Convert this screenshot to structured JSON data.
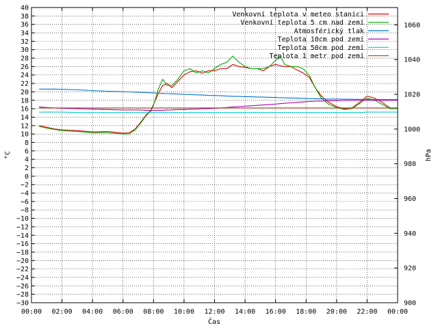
{
  "chart_data": {
    "type": "line",
    "title": "",
    "xlabel": "Čas",
    "ylabel": "°C",
    "y2label": "hPa",
    "xlim": [
      0,
      24
    ],
    "ylim": [
      -30,
      40
    ],
    "y2lim": [
      900,
      1070
    ],
    "grid": true,
    "legend_position": "top-right",
    "x_tick_labels": [
      "00:00",
      "02:00",
      "04:00",
      "06:00",
      "08:00",
      "10:00",
      "12:00",
      "14:00",
      "16:00",
      "18:00",
      "20:00",
      "22:00",
      "00:00"
    ],
    "y_tick_labels": [
      "40",
      "38",
      "36",
      "34",
      "32",
      "30",
      "28",
      "26",
      "24",
      "22",
      "20",
      "18",
      "16",
      "14",
      "12",
      "10",
      "8",
      "6",
      "4",
      "2",
      "0",
      "−2",
      "−4",
      "−6",
      "−8",
      "−10",
      "−12",
      "−14",
      "−16",
      "−18",
      "−20",
      "−22",
      "−24",
      "−26",
      "−28",
      "−30"
    ],
    "y2_tick_labels": [
      "1060",
      "1040",
      "1020",
      "1000",
      "980",
      "960",
      "940",
      "920",
      "900"
    ],
    "x_hours": [
      0.5,
      1,
      1.5,
      2,
      3,
      4,
      5,
      6,
      6.4,
      6.8,
      7.2,
      7.5,
      7.8,
      8,
      8.3,
      8.6,
      8.9,
      9.2,
      9.6,
      10,
      10.4,
      10.8,
      11.2,
      11.6,
      12,
      12.4,
      12.8,
      13.2,
      13.6,
      14,
      14.4,
      14.8,
      15.2,
      15.6,
      16,
      16.3,
      16.6,
      17,
      17.4,
      17.8,
      18.2,
      18.6,
      19,
      19.5,
      20,
      20.5,
      21,
      21.5,
      22,
      22.5,
      23,
      23.5,
      24
    ],
    "series": [
      {
        "name": "Venkovní teplota v meteo stanici",
        "color": "#dd0000",
        "axis": "left",
        "values": [
          12,
          11.6,
          11.2,
          11,
          10.8,
          10.5,
          10.6,
          10.2,
          10.3,
          11.2,
          13,
          14.5,
          15.5,
          17,
          19.5,
          21.5,
          22,
          21,
          22.5,
          24,
          24.8,
          25,
          24.4,
          25,
          25,
          25.5,
          25.5,
          26.5,
          26,
          25.8,
          25.5,
          25.5,
          25,
          26,
          26.5,
          26.2,
          26,
          26,
          25.2,
          24.5,
          23.5,
          21,
          19,
          17.5,
          16.5,
          16,
          16.2,
          17.5,
          19,
          18.5,
          17.5,
          16.2,
          16
        ]
      },
      {
        "name": "Venkovní teplota 5 cm nad zemí",
        "color": "#00aa00",
        "axis": "left",
        "values": [
          11.8,
          11.4,
          11.1,
          10.8,
          10.6,
          10.3,
          10.3,
          10,
          10,
          11,
          12.8,
          14.3,
          15.3,
          16.8,
          20.5,
          23,
          21.5,
          21.5,
          23,
          25,
          25.5,
          24.5,
          25,
          24.5,
          25.5,
          26.5,
          27,
          28.5,
          27,
          26,
          25.5,
          25.5,
          25.5,
          26,
          27.5,
          28.5,
          26.5,
          26,
          26,
          25.5,
          24,
          21,
          18.5,
          17,
          16.3,
          15.8,
          16,
          17.2,
          18.5,
          18,
          17,
          16,
          16
        ]
      },
      {
        "name": "Atmosférický tlak",
        "color": "#0070d0",
        "axis": "right",
        "values": [
          1023,
          1023,
          1023,
          1022.9,
          1022.6,
          1022.2,
          1021.8,
          1021.5,
          1021.4,
          1021.3,
          1021.1,
          1021,
          1020.9,
          1020.8,
          1020.6,
          1020.5,
          1020.4,
          1020.3,
          1020.2,
          1020,
          1019.9,
          1019.7,
          1019.6,
          1019.4,
          1019.3,
          1019.2,
          1019,
          1018.9,
          1018.8,
          1018.7,
          1018.6,
          1018.5,
          1018.4,
          1018.3,
          1018.2,
          1018.1,
          1018,
          1017.9,
          1017.8,
          1017.7,
          1017.6,
          1017.5,
          1017.4,
          1017.3,
          1017.3,
          1017.2,
          1017.2,
          1017.1,
          1017.1,
          1017,
          1017,
          1017,
          1017
        ]
      },
      {
        "name": "Teplota 10cm pod zemí",
        "color": "#aa00aa",
        "axis": "left",
        "values": [
          16.4,
          16.3,
          16.2,
          16.1,
          16,
          15.9,
          15.8,
          15.7,
          15.7,
          15.7,
          15.7,
          15.6,
          15.6,
          15.6,
          15.6,
          15.6,
          15.7,
          15.7,
          15.8,
          15.8,
          15.9,
          15.9,
          16,
          16,
          16.1,
          16.2,
          16.3,
          16.4,
          16.5,
          16.6,
          16.7,
          16.8,
          16.9,
          17,
          17.1,
          17.2,
          17.3,
          17.4,
          17.5,
          17.6,
          17.7,
          17.8,
          17.8,
          17.9,
          17.9,
          18,
          18,
          18,
          18,
          18,
          18,
          18,
          18
        ]
      },
      {
        "name": "Teplota 50cm pod zemí",
        "color": "#00cccc",
        "axis": "left",
        "values": [
          15.2,
          15.2,
          15.2,
          15.2,
          15.1,
          15.1,
          15.1,
          15.1,
          15.1,
          15.1,
          15.1,
          15.1,
          15.1,
          15.1,
          15.1,
          15.1,
          15.1,
          15.1,
          15.1,
          15.1,
          15.1,
          15.1,
          15.1,
          15.1,
          15.1,
          15.1,
          15.1,
          15.1,
          15.1,
          15.1,
          15.1,
          15.1,
          15.1,
          15.1,
          15.1,
          15.1,
          15.1,
          15.1,
          15.1,
          15.1,
          15.1,
          15.1,
          15.1,
          15.1,
          15.1,
          15.1,
          15.1,
          15.1,
          15.2,
          15.2,
          15.2,
          15.2,
          15.2
        ]
      },
      {
        "name": "Teplota 1 metr pod zemí",
        "color": "#a0522d",
        "axis": "left",
        "values": [
          16.2,
          16.2,
          16.2,
          16.2,
          16.2,
          16.2,
          16.2,
          16.2,
          16.2,
          16.2,
          16.2,
          16.2,
          16.2,
          16.2,
          16.2,
          16.2,
          16.2,
          16.2,
          16.2,
          16.2,
          16.2,
          16.2,
          16.2,
          16.2,
          16.2,
          16.2,
          16.2,
          16.2,
          16.2,
          16.2,
          16.2,
          16.2,
          16.2,
          16.2,
          16.2,
          16.2,
          16.2,
          16.2,
          16.2,
          16.2,
          16.2,
          16.2,
          16.2,
          16.2,
          16.2,
          16.2,
          16.2,
          16.2,
          16.2,
          16.2,
          16.2,
          16.2,
          16.2
        ]
      }
    ]
  }
}
